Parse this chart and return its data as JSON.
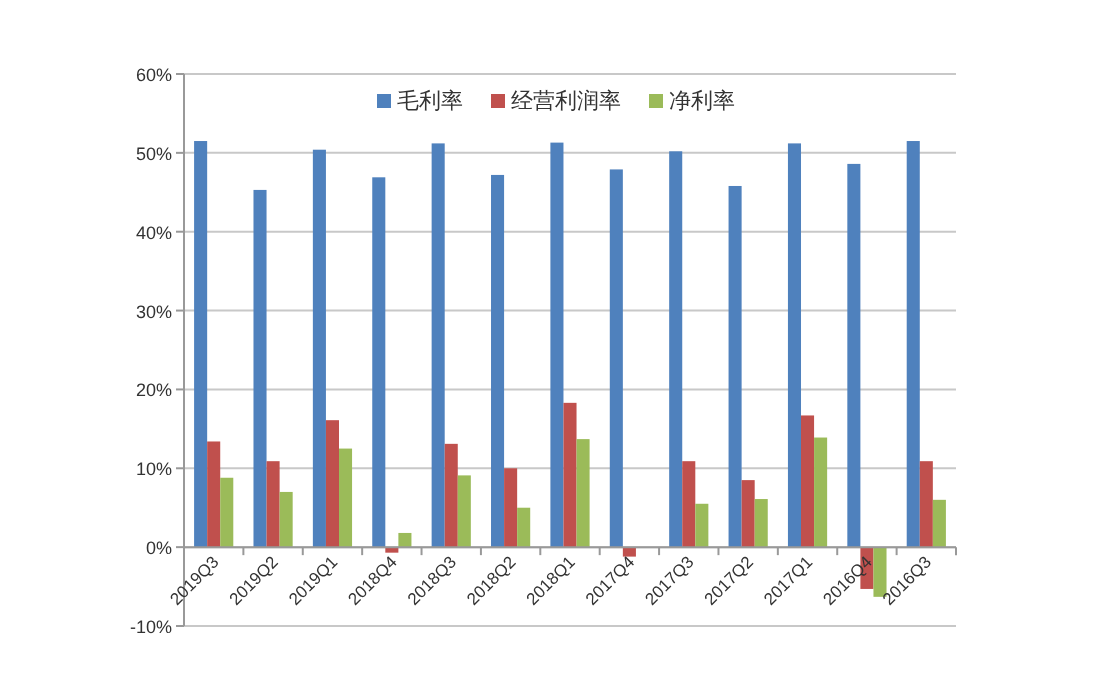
{
  "chart_data": {
    "type": "bar",
    "categories": [
      "2019Q3",
      "2019Q2",
      "2019Q1",
      "2018Q4",
      "2018Q3",
      "2018Q2",
      "2018Q1",
      "2017Q4",
      "2017Q3",
      "2017Q2",
      "2017Q1",
      "2016Q4",
      "2016Q3"
    ],
    "series": [
      {
        "name": "毛利率",
        "color": "#4f81bd",
        "values": [
          51.5,
          45.3,
          50.4,
          46.9,
          51.2,
          47.2,
          51.3,
          47.9,
          50.2,
          45.8,
          51.2,
          48.6,
          51.5
        ]
      },
      {
        "name": "经营利润率",
        "color": "#c0504d",
        "values": [
          13.4,
          10.9,
          16.1,
          -0.7,
          13.1,
          10.0,
          18.3,
          -1.2,
          10.9,
          8.5,
          16.7,
          -5.3,
          10.9
        ]
      },
      {
        "name": "净利率",
        "color": "#9bbb59",
        "values": [
          8.8,
          7.0,
          12.5,
          1.8,
          9.1,
          5.0,
          13.7,
          null,
          5.5,
          6.1,
          13.9,
          -6.3,
          6.0
        ]
      }
    ],
    "ylim": [
      -10,
      60
    ],
    "yticks": [
      {
        "value": -10,
        "label": "-10%"
      },
      {
        "value": 0,
        "label": "0%"
      },
      {
        "value": 10,
        "label": "10%"
      },
      {
        "value": 20,
        "label": "20%"
      },
      {
        "value": 30,
        "label": "30%"
      },
      {
        "value": 40,
        "label": "40%"
      },
      {
        "value": 50,
        "label": "50%"
      },
      {
        "value": 60,
        "label": "60%"
      }
    ],
    "grid": "y",
    "legend": "top"
  }
}
